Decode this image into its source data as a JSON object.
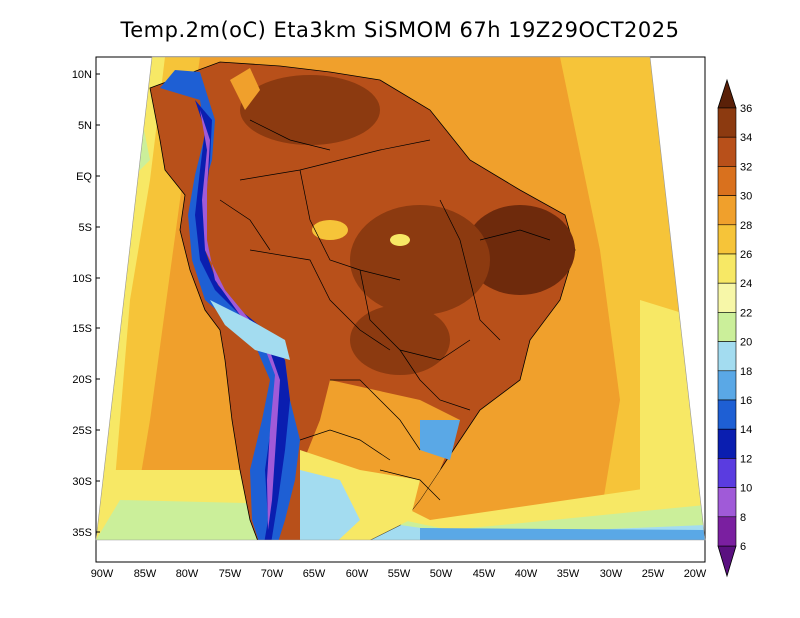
{
  "title": "Temp.2m(oC) Eta3km SiSMOM 67h 19Z29OCT2025",
  "lat_labels": [
    "10N",
    "5N",
    "EQ",
    "5S",
    "10S",
    "15S",
    "20S",
    "25S",
    "30S",
    "35S"
  ],
  "lon_labels": [
    "90W",
    "85W",
    "80W",
    "75W",
    "70W",
    "65W",
    "60W",
    "55W",
    "50W",
    "45W",
    "40W",
    "35W",
    "30W",
    "25W",
    "20W"
  ],
  "colorbar": {
    "labels": [
      "36",
      "34",
      "32",
      "30",
      "28",
      "26",
      "24",
      "22",
      "20",
      "18",
      "16",
      "14",
      "12",
      "10",
      "8",
      "6"
    ],
    "colors": [
      "#6e2a0c",
      "#8c3a10",
      "#b8501a",
      "#d9711e",
      "#f0a02c",
      "#f6c439",
      "#f7e865",
      "#f7f7a8",
      "#cbef9a",
      "#a3dcf0",
      "#5aa8e6",
      "#1e5fd4",
      "#0a1eb0",
      "#5a3ce0",
      "#a05ad8",
      "#7a1fa0"
    ]
  },
  "legend_labels": {
    "variable": "Temp.2m(oC)",
    "model": "Eta3km SiSMOM",
    "forecast_hour": "67h",
    "valid_time": "19Z29OCT2025"
  },
  "map_colors": {
    "ocean_north": "#f6c439",
    "ocean_south": "#f0a02c",
    "land_hot": "#b8501a",
    "land_very_hot": "#6e2a0c",
    "andes": "#1e5fd4",
    "south_cool": "#a3dcf0"
  }
}
